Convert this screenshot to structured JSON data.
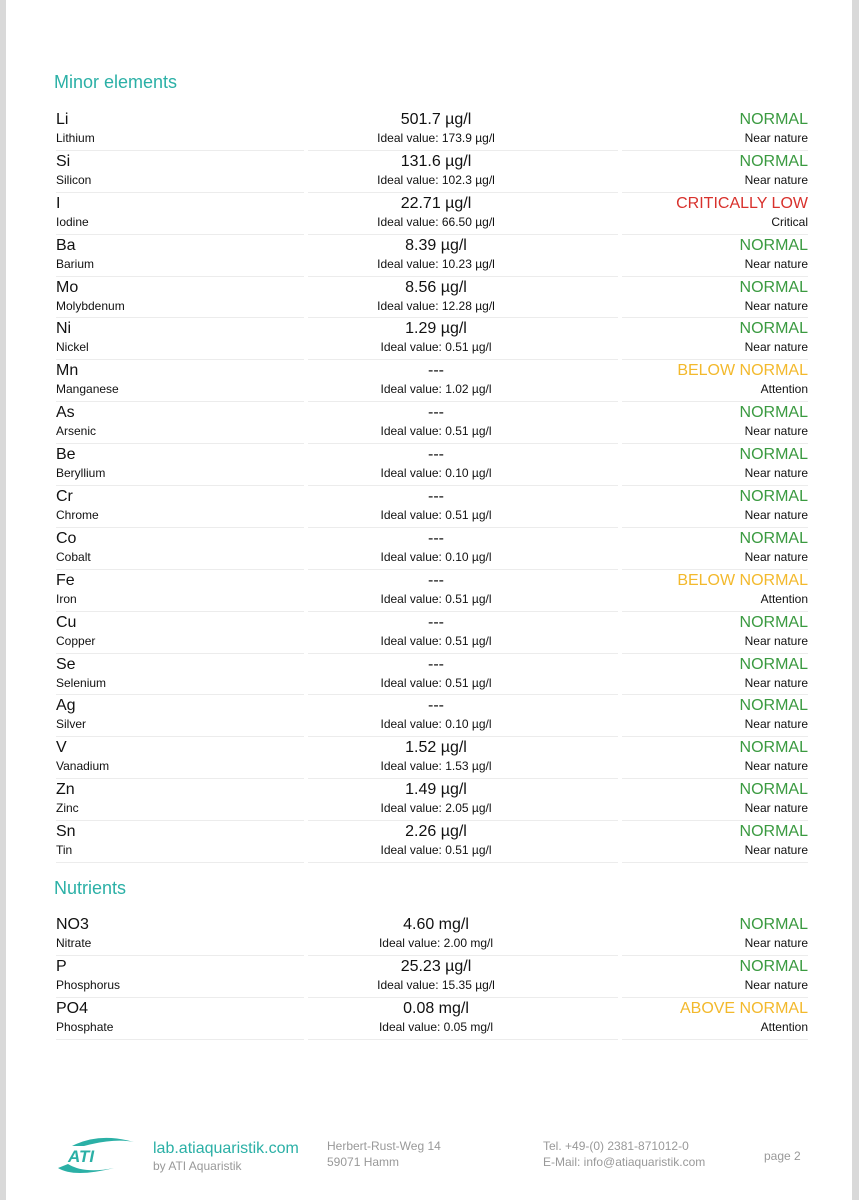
{
  "colors": {
    "accent": "#2bb0a6",
    "normal": "#3a9a40",
    "critical": "#d8312c",
    "attention": "#f3b92c"
  },
  "sections": [
    {
      "title": "Minor elements",
      "rows": [
        {
          "symbol": "Li",
          "name": "Lithium",
          "value": "501.7 µg/l",
          "ideal": "Ideal value: 173.9 µg/l",
          "status": "NORMAL",
          "desc": "Near nature",
          "level": "normal"
        },
        {
          "symbol": "Si",
          "name": "Silicon",
          "value": "131.6 µg/l",
          "ideal": "Ideal value: 102.3 µg/l",
          "status": "NORMAL",
          "desc": "Near nature",
          "level": "normal"
        },
        {
          "symbol": "I",
          "name": "Iodine",
          "value": "22.71 µg/l",
          "ideal": "Ideal value: 66.50 µg/l",
          "status": "CRITICALLY LOW",
          "desc": "Critical",
          "level": "critical"
        },
        {
          "symbol": "Ba",
          "name": "Barium",
          "value": "8.39 µg/l",
          "ideal": "Ideal value: 10.23 µg/l",
          "status": "NORMAL",
          "desc": "Near nature",
          "level": "normal"
        },
        {
          "symbol": "Mo",
          "name": "Molybdenum",
          "value": "8.56 µg/l",
          "ideal": "Ideal value: 12.28 µg/l",
          "status": "NORMAL",
          "desc": "Near nature",
          "level": "normal"
        },
        {
          "symbol": "Ni",
          "name": "Nickel",
          "value": "1.29 µg/l",
          "ideal": "Ideal value: 0.51 µg/l",
          "status": "NORMAL",
          "desc": "Near nature",
          "level": "normal"
        },
        {
          "symbol": "Mn",
          "name": "Manganese",
          "value": "---",
          "ideal": "Ideal value: 1.02 µg/l",
          "status": "BELOW NORMAL",
          "desc": "Attention",
          "level": "attention"
        },
        {
          "symbol": "As",
          "name": "Arsenic",
          "value": "---",
          "ideal": "Ideal value: 0.51 µg/l",
          "status": "NORMAL",
          "desc": "Near nature",
          "level": "normal"
        },
        {
          "symbol": "Be",
          "name": "Beryllium",
          "value": "---",
          "ideal": "Ideal value: 0.10 µg/l",
          "status": "NORMAL",
          "desc": "Near nature",
          "level": "normal"
        },
        {
          "symbol": "Cr",
          "name": "Chrome",
          "value": "---",
          "ideal": "Ideal value: 0.51 µg/l",
          "status": "NORMAL",
          "desc": "Near nature",
          "level": "normal"
        },
        {
          "symbol": "Co",
          "name": "Cobalt",
          "value": "---",
          "ideal": "Ideal value: 0.10 µg/l",
          "status": "NORMAL",
          "desc": "Near nature",
          "level": "normal"
        },
        {
          "symbol": "Fe",
          "name": "Iron",
          "value": "---",
          "ideal": "Ideal value: 0.51 µg/l",
          "status": "BELOW NORMAL",
          "desc": "Attention",
          "level": "attention"
        },
        {
          "symbol": "Cu",
          "name": "Copper",
          "value": "---",
          "ideal": "Ideal value: 0.51 µg/l",
          "status": "NORMAL",
          "desc": "Near nature",
          "level": "normal"
        },
        {
          "symbol": "Se",
          "name": "Selenium",
          "value": "---",
          "ideal": "Ideal value: 0.51 µg/l",
          "status": "NORMAL",
          "desc": "Near nature",
          "level": "normal"
        },
        {
          "symbol": "Ag",
          "name": "Silver",
          "value": "---",
          "ideal": "Ideal value: 0.10 µg/l",
          "status": "NORMAL",
          "desc": "Near nature",
          "level": "normal"
        },
        {
          "symbol": "V",
          "name": "Vanadium",
          "value": "1.52 µg/l",
          "ideal": "Ideal value: 1.53 µg/l",
          "status": "NORMAL",
          "desc": "Near nature",
          "level": "normal"
        },
        {
          "symbol": "Zn",
          "name": "Zinc",
          "value": "1.49 µg/l",
          "ideal": "Ideal value: 2.05 µg/l",
          "status": "NORMAL",
          "desc": "Near nature",
          "level": "normal"
        },
        {
          "symbol": "Sn",
          "name": "Tin",
          "value": "2.26 µg/l",
          "ideal": "Ideal value: 0.51 µg/l",
          "status": "NORMAL",
          "desc": "Near nature",
          "level": "normal"
        }
      ]
    },
    {
      "title": "Nutrients",
      "rows": [
        {
          "symbol": "NO3",
          "name": "Nitrate",
          "value": "4.60 mg/l",
          "ideal": "Ideal value: 2.00 mg/l",
          "status": "NORMAL",
          "desc": "Near nature",
          "level": "normal"
        },
        {
          "symbol": "P",
          "name": "Phosphorus",
          "value": "25.23 µg/l",
          "ideal": "Ideal value: 15.35 µg/l",
          "status": "NORMAL",
          "desc": "Near nature",
          "level": "normal"
        },
        {
          "symbol": "PO4",
          "name": "Phosphate",
          "value": "0.08 mg/l",
          "ideal": "Ideal value: 0.05 mg/l",
          "status": "ABOVE NORMAL",
          "desc": "Attention",
          "level": "attention"
        }
      ]
    }
  ],
  "footer": {
    "logo": "ATI",
    "site": "lab.atiaquaristik.com",
    "by": "by ATI Aquaristik",
    "street": "Herbert-Rust-Weg 14",
    "city": "59071 Hamm",
    "tel": "Tel. +49-(0) 2381-871012-0",
    "email": "E-Mail: info@atiaquaristik.com",
    "page": "page 2"
  }
}
